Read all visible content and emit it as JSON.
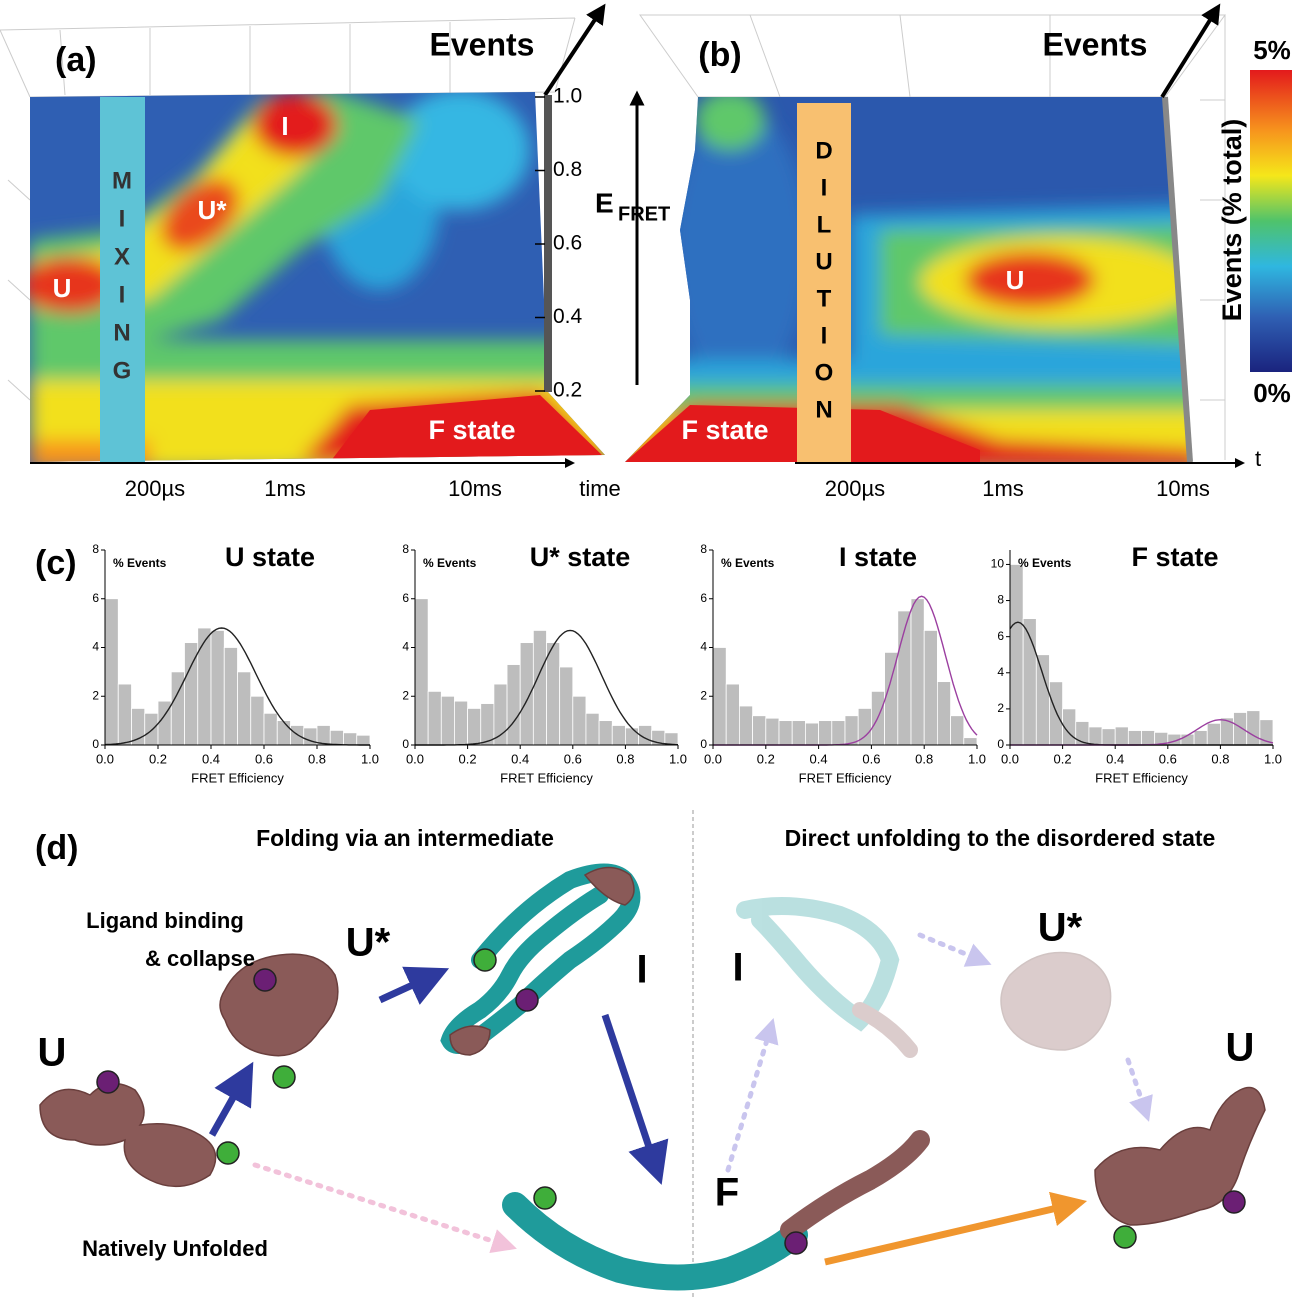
{
  "panel_a": {
    "label": "(a)",
    "axis_title": "Events",
    "band_letters": [
      "M",
      "I",
      "X",
      "I",
      "N",
      "G"
    ],
    "states": {
      "u": "U",
      "ustar": "U*",
      "i": "I",
      "f": "F state"
    },
    "efret_ticks": [
      "1.0",
      "0.8",
      "0.6",
      "0.4",
      "0.2"
    ],
    "efret_label": "E",
    "efret_sub": "FRET",
    "time_ticks": [
      "200µs",
      "1ms",
      "10ms"
    ],
    "time_label": "time"
  },
  "panel_b": {
    "label": "(b)",
    "axis_title": "Events",
    "band_letters": [
      "D",
      "I",
      "L",
      "U",
      "T",
      "I",
      "O",
      "N"
    ],
    "states": {
      "u": "U",
      "f": "F state"
    },
    "time_ticks": [
      "200µs",
      "1ms",
      "10ms"
    ],
    "time_label": "t"
  },
  "colorbar": {
    "max": "5%",
    "min": "0%",
    "title": "Events (% total)"
  },
  "panel_c": {
    "label": "(c)"
  },
  "chart_data": [
    {
      "type": "histogram",
      "title": "U state",
      "ylabel": "% Events",
      "xlabel": "FRET Efficiency",
      "color": "#bdbdbd",
      "bins": [
        0,
        0.05,
        0.1,
        0.15,
        0.2,
        0.25,
        0.3,
        0.35,
        0.4,
        0.45,
        0.5,
        0.55,
        0.6,
        0.65,
        0.7,
        0.75,
        0.8,
        0.85,
        0.9,
        0.95,
        1
      ],
      "counts": [
        6,
        2.5,
        1.5,
        1.3,
        1.8,
        3,
        4.2,
        4.8,
        4.7,
        4,
        3,
        2,
        1.3,
        1,
        0.8,
        0.7,
        0.8,
        0.6,
        0.5,
        0.4
      ],
      "fits": [
        {
          "center": 0.44,
          "width": 0.13,
          "height": 4.8,
          "color": "#222222"
        }
      ],
      "xlim": [
        0,
        1
      ],
      "ylim": [
        0,
        8
      ],
      "xticks": [
        {
          "value": 0,
          "label": "0.0"
        },
        0.2,
        0.4,
        0.6,
        0.8,
        {
          "value": 1,
          "label": "1.0"
        }
      ],
      "yticks": [
        0,
        2,
        4,
        6,
        8
      ]
    },
    {
      "type": "histogram",
      "title": "U* state",
      "ylabel": "% Events",
      "xlabel": "FRET Efficiency",
      "color": "#bdbdbd",
      "bins": [
        0,
        0.05,
        0.1,
        0.15,
        0.2,
        0.25,
        0.3,
        0.35,
        0.4,
        0.45,
        0.5,
        0.55,
        0.6,
        0.65,
        0.7,
        0.75,
        0.8,
        0.85,
        0.9,
        0.95,
        1
      ],
      "counts": [
        6,
        2.2,
        2,
        1.8,
        1.5,
        1.7,
        2.5,
        3.3,
        4.2,
        4.7,
        4.2,
        3.2,
        2,
        1.3,
        1,
        0.8,
        0.7,
        0.8,
        0.6,
        0.5
      ],
      "fits": [
        {
          "center": 0.59,
          "width": 0.12,
          "height": 4.7,
          "color": "#222222"
        }
      ],
      "xlim": [
        0,
        1
      ],
      "ylim": [
        0,
        8
      ],
      "xticks": [
        {
          "value": 0,
          "label": "0.0"
        },
        0.2,
        0.4,
        0.6,
        0.8,
        {
          "value": 1,
          "label": "1.0"
        }
      ],
      "yticks": [
        0,
        2,
        4,
        6,
        8
      ]
    },
    {
      "type": "histogram",
      "title": "I state",
      "ylabel": "% Events",
      "xlabel": "FRET Efficiency",
      "color": "#bdbdbd",
      "bins": [
        0,
        0.05,
        0.1,
        0.15,
        0.2,
        0.25,
        0.3,
        0.35,
        0.4,
        0.45,
        0.5,
        0.55,
        0.6,
        0.65,
        0.7,
        0.75,
        0.8,
        0.85,
        0.9,
        0.95,
        1
      ],
      "counts": [
        4,
        2.5,
        1.6,
        1.2,
        1.1,
        1,
        1,
        0.9,
        1,
        1,
        1.2,
        1.5,
        2.2,
        3.8,
        5.5,
        6,
        4.7,
        2.6,
        1.2,
        0.3
      ],
      "fits": [
        {
          "center": 0.79,
          "width": 0.09,
          "height": 6.1,
          "color": "#9b3fa0"
        }
      ],
      "xlim": [
        0,
        1
      ],
      "ylim": [
        0,
        8
      ],
      "xticks": [
        {
          "value": 0,
          "label": "0.0"
        },
        0.2,
        0.4,
        0.6,
        0.8,
        {
          "value": 1,
          "label": "1.0"
        }
      ],
      "yticks": [
        0,
        2,
        4,
        6,
        8
      ]
    },
    {
      "type": "histogram",
      "title": "F state",
      "ylabel": "% Events",
      "xlabel": "FRET Efficiency",
      "color": "#bdbdbd",
      "bins": [
        0,
        0.05,
        0.1,
        0.15,
        0.2,
        0.25,
        0.3,
        0.35,
        0.4,
        0.45,
        0.5,
        0.55,
        0.6,
        0.65,
        0.7,
        0.75,
        0.8,
        0.85,
        0.9,
        0.95,
        1
      ],
      "counts": [
        10,
        7,
        5,
        3.5,
        2,
        1.3,
        1,
        0.9,
        1,
        0.8,
        0.8,
        0.7,
        0.6,
        0.6,
        0.8,
        1.2,
        1.5,
        1.8,
        1.9,
        1.4
      ],
      "fits": [
        {
          "center": 0.03,
          "width": 0.09,
          "height": 6.8,
          "color": "#222222"
        },
        {
          "center": 0.8,
          "width": 0.09,
          "height": 1.4,
          "color": "#9b3fa0"
        }
      ],
      "xlim": [
        0,
        1
      ],
      "ylim": [
        0,
        10.8
      ],
      "xticks": [
        {
          "value": 0,
          "label": "0.0"
        },
        0.2,
        0.4,
        0.6,
        0.8,
        {
          "value": 1,
          "label": "1.0"
        }
      ],
      "yticks": [
        0,
        2,
        4,
        6,
        8,
        10
      ]
    }
  ],
  "panel_d": {
    "label": "(d)",
    "left_title": "Folding via an intermediate",
    "right_title": "Direct unfolding to the disordered state",
    "ligand_1": "Ligand binding",
    "ligand_2": "& collapse",
    "ustar": "U*",
    "i": "I",
    "u": "U",
    "natively": "Natively Unfolded",
    "f": "F",
    "r_i": "I",
    "r_ustar": "U*",
    "r_u": "U"
  }
}
